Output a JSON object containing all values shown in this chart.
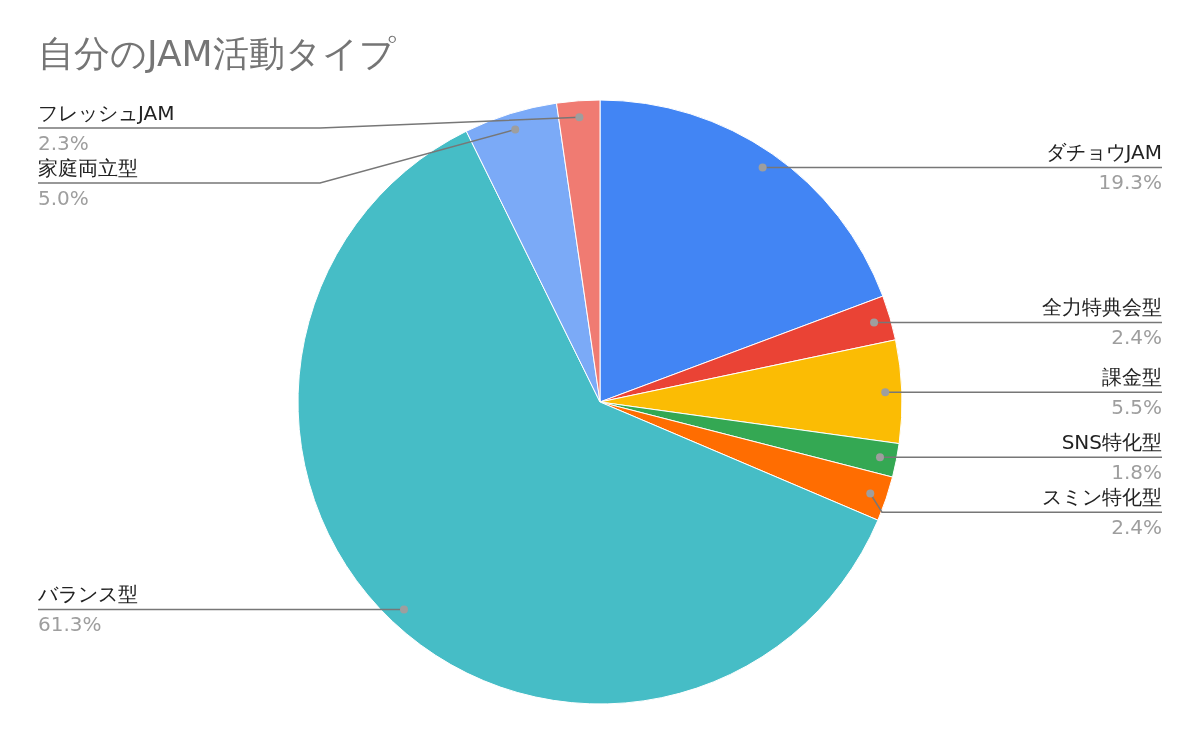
{
  "chart_data": {
    "type": "pie",
    "title": "自分のJAM活動タイプ",
    "categories": [
      "ダチョウJAM",
      "全力特典会型",
      "課金型",
      "SNS特化型",
      "スミン特化型",
      "バランス型",
      "家庭両立型",
      "フレッシュJAM"
    ],
    "values": [
      19.3,
      2.4,
      5.5,
      1.8,
      2.4,
      61.3,
      5.0,
      2.3
    ],
    "colors": [
      "#4285f4",
      "#ea4335",
      "#fbbc04",
      "#34a853",
      "#ff6d01",
      "#46bdc6",
      "#7baaf7",
      "#f07b72"
    ],
    "value_labels": [
      "19.3%",
      "2.4%",
      "5.5%",
      "1.8%",
      "2.4%",
      "61.3%",
      "5.0%",
      "2.3%"
    ]
  }
}
